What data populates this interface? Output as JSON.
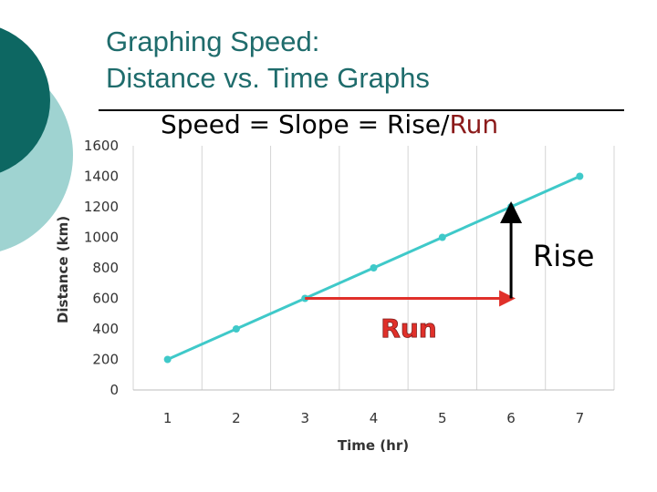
{
  "title_line1": "Graphing Speed:",
  "title_line2": "Distance vs. Time Graphs",
  "subtitle_prefix": "Speed = Slope = Rise/",
  "subtitle_run": "Run",
  "rise_label": "Rise",
  "run_label": "Run",
  "colors": {
    "title": "#1f6c6c",
    "series": "#3fc9c9",
    "run_arrow": "#e0302a",
    "rise_arrow": "#000000",
    "deco_dark": "#0d6762",
    "deco_light": "#9fd3d1"
  },
  "chart_data": {
    "type": "line",
    "xlabel": "Time (hr)",
    "ylabel": "Distance (km)",
    "x": [
      1,
      2,
      3,
      4,
      5,
      6,
      7
    ],
    "series": [
      {
        "values": [
          200,
          400,
          600,
          800,
          1000,
          1200,
          1400
        ]
      }
    ],
    "y_ticks": [
      0,
      200,
      400,
      600,
      800,
      1000,
      1200,
      1400,
      1600
    ],
    "ylim": [
      0,
      1600
    ],
    "xlim": [
      0.5,
      7.5
    ],
    "grid": "vertical",
    "annotations": [
      {
        "text": "Run",
        "from": [
          3,
          600
        ],
        "to": [
          6,
          600
        ]
      },
      {
        "text": "Rise",
        "from": [
          6,
          600
        ],
        "to": [
          6,
          1200
        ]
      }
    ]
  }
}
